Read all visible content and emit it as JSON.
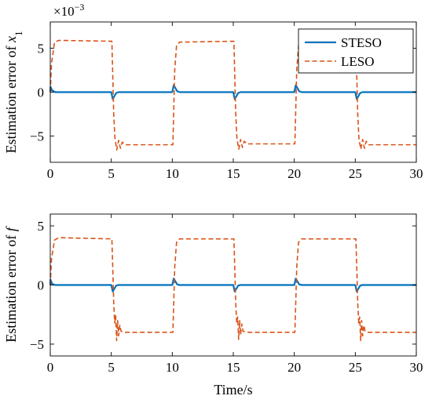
{
  "chart_data": [
    {
      "type": "line",
      "ylabel_text": "Estimation error of ",
      "ylabel_var": "x",
      "ylabel_sub": "1",
      "exponent_text": "×10",
      "exponent_power": "−3",
      "xlim": [
        0,
        30
      ],
      "ylim": [
        -8,
        8
      ],
      "xticks": [
        "0",
        "5",
        "10",
        "15",
        "20",
        "25",
        "30"
      ],
      "xtick_values": [
        0,
        5,
        10,
        15,
        20,
        25,
        30
      ],
      "yticks": [
        "−5",
        "0",
        "5"
      ],
      "ytick_values": [
        -5,
        0,
        5
      ],
      "legend": {
        "position": "top-right",
        "entries": [
          "STESO",
          "LESO"
        ]
      },
      "series": [
        {
          "name": "STESO",
          "color": "#0072BD",
          "style": "solid",
          "points": [
            [
              0,
              0
            ],
            [
              0.02,
              0.6
            ],
            [
              0.15,
              0.2
            ],
            [
              0.4,
              0
            ],
            [
              5.0,
              0
            ],
            [
              5.12,
              -0.8
            ],
            [
              5.4,
              -0.1
            ],
            [
              5.6,
              0
            ],
            [
              10.0,
              0
            ],
            [
              10.12,
              0.8
            ],
            [
              10.4,
              0.1
            ],
            [
              10.6,
              0
            ],
            [
              15.0,
              0
            ],
            [
              15.12,
              -0.8
            ],
            [
              15.4,
              -0.1
            ],
            [
              15.6,
              0
            ],
            [
              20.0,
              0
            ],
            [
              20.12,
              0.8
            ],
            [
              20.4,
              0.1
            ],
            [
              20.6,
              0
            ],
            [
              25.0,
              0
            ],
            [
              25.12,
              -0.8
            ],
            [
              25.4,
              -0.1
            ],
            [
              25.6,
              0
            ],
            [
              30,
              0
            ]
          ]
        },
        {
          "name": "LESO",
          "color": "#D95319",
          "style": "dashed",
          "points": [
            [
              0,
              0
            ],
            [
              0.1,
              3.2
            ],
            [
              0.35,
              5.7
            ],
            [
              0.7,
              5.9
            ],
            [
              5.05,
              5.8
            ],
            [
              5.12,
              2.0
            ],
            [
              5.2,
              -2.5
            ],
            [
              5.3,
              -5.2
            ],
            [
              5.45,
              -6.6
            ],
            [
              5.6,
              -5.5
            ],
            [
              5.75,
              -6.4
            ],
            [
              5.9,
              -5.7
            ],
            [
              6.1,
              -6.0
            ],
            [
              10.05,
              -6.0
            ],
            [
              10.12,
              -2.0
            ],
            [
              10.2,
              2.5
            ],
            [
              10.35,
              5.3
            ],
            [
              10.6,
              5.7
            ],
            [
              15.05,
              5.8
            ],
            [
              15.12,
              2.0
            ],
            [
              15.2,
              -2.5
            ],
            [
              15.3,
              -5.3
            ],
            [
              15.45,
              -6.5
            ],
            [
              15.6,
              -5.4
            ],
            [
              15.75,
              -6.3
            ],
            [
              15.9,
              -5.6
            ],
            [
              16.1,
              -5.9
            ],
            [
              20.05,
              -5.9
            ],
            [
              20.12,
              -2.0
            ],
            [
              20.2,
              2.5
            ],
            [
              20.35,
              5.3
            ],
            [
              20.6,
              5.8
            ],
            [
              25.05,
              5.8
            ],
            [
              25.12,
              2.0
            ],
            [
              25.2,
              -2.5
            ],
            [
              25.3,
              -5.3
            ],
            [
              25.45,
              -6.5
            ],
            [
              25.6,
              -5.4
            ],
            [
              25.75,
              -6.4
            ],
            [
              25.9,
              -5.6
            ],
            [
              26.1,
              -6.0
            ],
            [
              30,
              -6.0
            ]
          ]
        }
      ]
    },
    {
      "type": "line",
      "ylabel_text": "Estimation error of ",
      "ylabel_var": "f",
      "xlabel": "Time/s",
      "xlim": [
        0,
        30
      ],
      "ylim": [
        -6,
        6
      ],
      "xticks": [
        "0",
        "5",
        "10",
        "15",
        "20",
        "25",
        "30"
      ],
      "xtick_values": [
        0,
        5,
        10,
        15,
        20,
        25,
        30
      ],
      "yticks": [
        "−5",
        "0",
        "5"
      ],
      "ytick_values": [
        -5,
        0,
        5
      ],
      "series": [
        {
          "name": "STESO",
          "color": "#0072BD",
          "style": "solid",
          "points": [
            [
              0,
              0
            ],
            [
              0.02,
              0.45
            ],
            [
              0.15,
              0.1
            ],
            [
              0.4,
              0
            ],
            [
              5.0,
              0
            ],
            [
              5.12,
              -0.55
            ],
            [
              5.4,
              -0.05
            ],
            [
              5.6,
              0
            ],
            [
              10.0,
              0
            ],
            [
              10.12,
              0.55
            ],
            [
              10.4,
              0.05
            ],
            [
              10.6,
              0
            ],
            [
              15.0,
              0
            ],
            [
              15.12,
              -0.55
            ],
            [
              15.4,
              -0.05
            ],
            [
              15.6,
              0
            ],
            [
              20.0,
              0
            ],
            [
              20.12,
              0.55
            ],
            [
              20.4,
              0.05
            ],
            [
              20.6,
              0
            ],
            [
              25.0,
              0
            ],
            [
              25.12,
              -0.55
            ],
            [
              25.4,
              -0.05
            ],
            [
              25.6,
              0
            ],
            [
              30,
              0
            ]
          ]
        },
        {
          "name": "LESO",
          "color": "#D95319",
          "style": "dashed",
          "points": [
            [
              0,
              0
            ],
            [
              0.1,
              2.2
            ],
            [
              0.35,
              3.8
            ],
            [
              0.7,
              4.0
            ],
            [
              5.05,
              3.9
            ],
            [
              5.12,
              1.5
            ],
            [
              5.2,
              -1.5
            ],
            [
              5.28,
              -3.2
            ],
            [
              5.36,
              -2.6
            ],
            [
              5.44,
              -4.7
            ],
            [
              5.52,
              -3.0
            ],
            [
              5.6,
              -4.3
            ],
            [
              5.7,
              -3.4
            ],
            [
              5.8,
              -3.9
            ],
            [
              6.0,
              -4.0
            ],
            [
              10.05,
              -4.0
            ],
            [
              10.12,
              -1.5
            ],
            [
              10.2,
              1.5
            ],
            [
              10.35,
              3.6
            ],
            [
              10.6,
              3.9
            ],
            [
              15.05,
              3.9
            ],
            [
              15.12,
              1.5
            ],
            [
              15.2,
              -1.5
            ],
            [
              15.28,
              -3.2
            ],
            [
              15.36,
              -2.7
            ],
            [
              15.44,
              -4.6
            ],
            [
              15.52,
              -3.0
            ],
            [
              15.6,
              -4.2
            ],
            [
              15.7,
              -3.3
            ],
            [
              15.8,
              -3.9
            ],
            [
              16.0,
              -4.0
            ],
            [
              20.05,
              -4.0
            ],
            [
              20.12,
              -1.5
            ],
            [
              20.2,
              1.5
            ],
            [
              20.35,
              3.6
            ],
            [
              20.6,
              3.9
            ],
            [
              25.05,
              3.9
            ],
            [
              25.12,
              1.5
            ],
            [
              25.2,
              -1.5
            ],
            [
              25.28,
              -3.2
            ],
            [
              25.36,
              -2.7
            ],
            [
              25.44,
              -4.7
            ],
            [
              25.52,
              -3.0
            ],
            [
              25.6,
              -4.3
            ],
            [
              25.7,
              -3.4
            ],
            [
              25.8,
              -3.9
            ],
            [
              26.0,
              -4.0
            ],
            [
              30,
              -4.0
            ]
          ]
        }
      ]
    }
  ]
}
